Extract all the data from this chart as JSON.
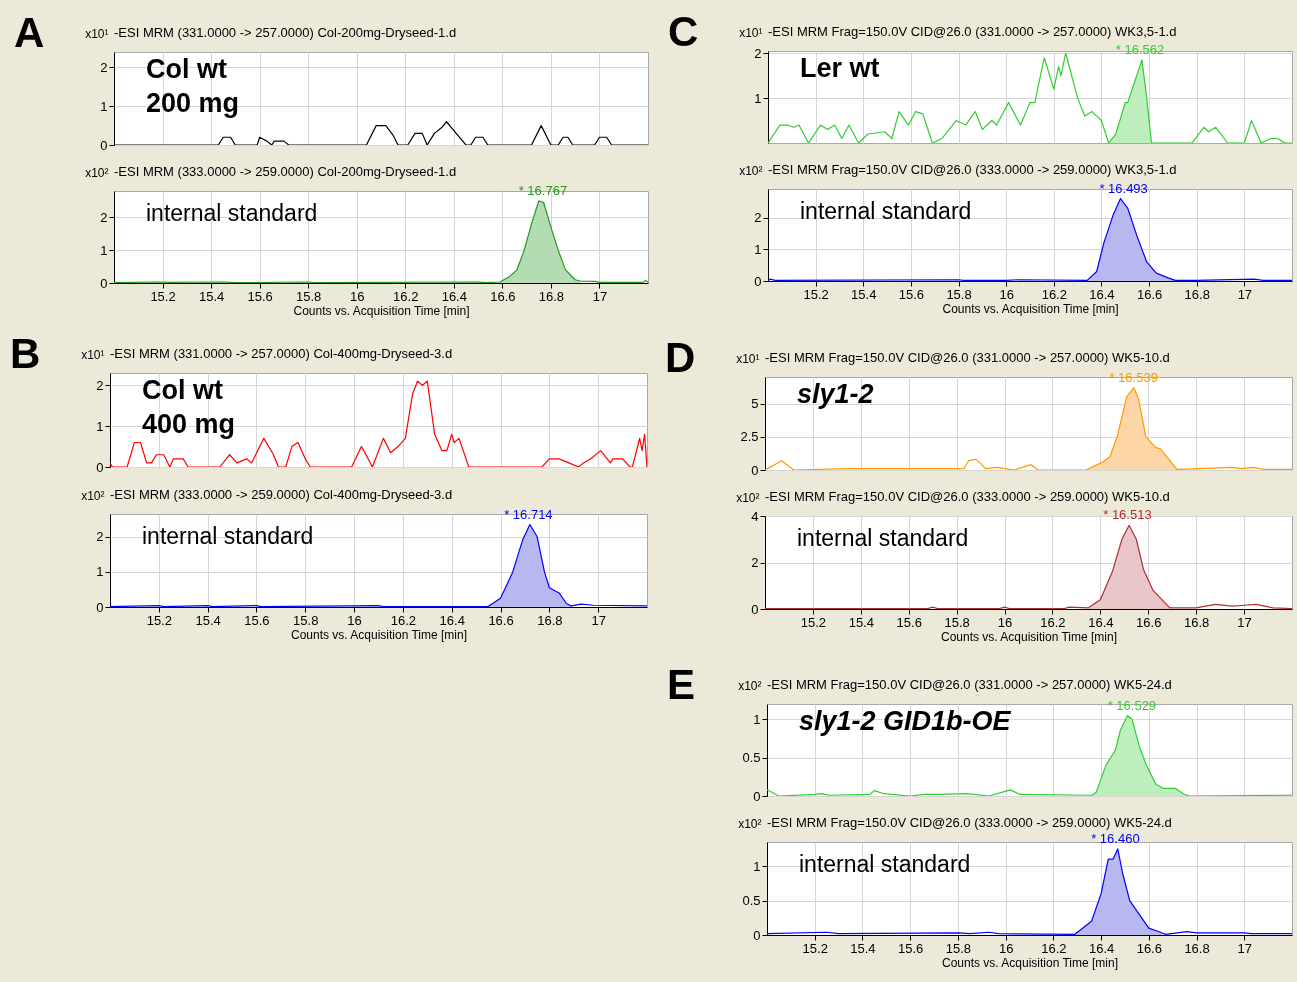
{
  "chart_data": [
    {
      "type": "line",
      "title": "-ESI MRM (331.0000 -> 257.0000) Col-200mg-Dryseed-1.d",
      "ylabel": "x10¹",
      "xlim": [
        15.0,
        17.2
      ],
      "xticks": [
        15.2,
        15.4,
        15.6,
        15.8,
        16,
        16.2,
        16.4,
        16.6,
        16.8,
        17
      ],
      "ylim": [
        0,
        2.4
      ],
      "yticks": [
        0,
        1,
        2
      ],
      "grid": true,
      "tick_labels": "y",
      "series": [
        {
          "color": "#000000",
          "x": [
            15.0,
            15.43,
            15.45,
            15.48,
            15.5,
            15.59,
            15.6,
            15.63,
            15.65,
            15.66,
            15.7,
            15.72,
            16.04,
            16.08,
            16.12,
            16.15,
            16.17,
            16.21,
            16.24,
            16.27,
            16.29,
            16.32,
            16.35,
            16.37,
            16.39,
            16.45,
            16.47,
            16.49,
            16.52,
            16.54,
            16.72,
            16.76,
            16.8,
            16.83,
            16.85,
            16.87,
            16.89,
            16.98,
            17.0,
            17.03,
            17.05,
            17.2
          ],
          "values": [
            0,
            0,
            0.2,
            0.2,
            0,
            0,
            0.2,
            0.1,
            0,
            0.1,
            0.1,
            0,
            0,
            0.5,
            0.5,
            0.25,
            0,
            0,
            0.3,
            0.3,
            0,
            0.3,
            0.45,
            0.6,
            0.45,
            0,
            0,
            0.2,
            0.2,
            0,
            0,
            0.5,
            0,
            0,
            0.2,
            0.2,
            0,
            0,
            0.2,
            0.2,
            0,
            0
          ]
        }
      ],
      "annotations": [
        "A",
        "Col wt\n200 mg"
      ]
    },
    {
      "type": "line",
      "title": "-ESI MRM (333.0000 -> 259.0000) Col-200mg-Dryseed-1.d",
      "ylabel": "x10²",
      "xlabel": "Counts vs. Acquisition Time [min]",
      "xlim": [
        15.0,
        17.2
      ],
      "xticks": [
        15.2,
        15.4,
        15.6,
        15.8,
        16,
        16.2,
        16.4,
        16.6,
        16.8,
        17
      ],
      "ylim": [
        0,
        2.8
      ],
      "yticks": [
        0,
        1,
        2
      ],
      "grid": true,
      "series": [
        {
          "type": "area",
          "color": "#b3dcb3",
          "x": [
            16.59,
            16.63,
            16.66,
            16.69,
            16.72,
            16.75,
            16.77,
            16.8,
            16.83,
            16.86,
            16.9,
            16.92
          ],
          "values": [
            0.03,
            0.2,
            0.4,
            1.0,
            1.8,
            2.5,
            2.45,
            1.7,
            1.0,
            0.4,
            0.1,
            0.06
          ]
        },
        {
          "color": "#1f9a1f",
          "x": [
            15.0,
            15.18,
            15.22,
            15.45,
            15.5,
            15.8,
            15.82,
            16.5,
            16.53,
            16.59,
            16.63,
            16.66,
            16.69,
            16.72,
            16.75,
            16.77,
            16.8,
            16.83,
            16.86,
            16.9,
            16.92,
            16.98,
            17.0,
            17.18,
            17.19,
            17.2
          ],
          "values": [
            0.01,
            0.03,
            0.02,
            0.03,
            0.01,
            0.03,
            0.01,
            0.03,
            0.01,
            0.03,
            0.2,
            0.4,
            1.0,
            1.8,
            2.5,
            2.45,
            1.7,
            1.0,
            0.4,
            0.1,
            0.06,
            0.05,
            0.02,
            0.02,
            0.08,
            0.02
          ]
        }
      ],
      "annotations": [
        "internal standard",
        {
          "text": "* 16.767",
          "x": 16.767,
          "y": 2.5
        }
      ]
    },
    {
      "type": "line",
      "title": "-ESI MRM (331.0000 -> 257.0000) Col-400mg-Dryseed-3.d",
      "ylabel": "x10¹",
      "xlim": [
        15.0,
        17.2
      ],
      "xticks": [
        15.2,
        15.4,
        15.6,
        15.8,
        16,
        16.2,
        16.4,
        16.6,
        16.8,
        17
      ],
      "ylim": [
        0,
        2.3
      ],
      "yticks": [
        0,
        1,
        2
      ],
      "grid": true,
      "tick_labels": "y",
      "series": [
        {
          "color": "#ff0000",
          "x": [
            15.0,
            15.01,
            15.07,
            15.1,
            15.125,
            15.15,
            15.17,
            15.19,
            15.22,
            15.245,
            15.26,
            15.3,
            15.32,
            15.45,
            15.49,
            15.52,
            15.56,
            15.58,
            15.63,
            15.67,
            15.69,
            15.72,
            15.745,
            15.77,
            15.8,
            15.82,
            15.99,
            16.03,
            16.04,
            16.075,
            16.12,
            16.15,
            16.18,
            16.21,
            16.24,
            16.26,
            16.28,
            16.3,
            16.33,
            16.36,
            16.38,
            16.4,
            16.41,
            16.43,
            16.47,
            16.77,
            16.8,
            16.84,
            16.88,
            16.92,
            16.94,
            16.97,
            17.01,
            17.05,
            17.06,
            17.1,
            17.13,
            17.14,
            17.17,
            17.18,
            17.19,
            17.2
          ],
          "values": [
            0.1,
            0,
            0,
            0.6,
            0.6,
            0.1,
            0.1,
            0.3,
            0.3,
            0,
            0.2,
            0.2,
            0,
            0,
            0.3,
            0.1,
            0.2,
            0.1,
            0.7,
            0.3,
            0,
            0,
            0.5,
            0.6,
            0.2,
            0,
            0,
            0.5,
            0.4,
            0,
            0.7,
            0.35,
            0.5,
            0.7,
            1.8,
            2.1,
            2.0,
            2.1,
            0.8,
            0.4,
            0.4,
            0.8,
            0.6,
            0.7,
            0,
            0,
            0.2,
            0.2,
            0.1,
            0,
            0.1,
            0.2,
            0.4,
            0.1,
            0.2,
            0.2,
            0,
            0,
            0.7,
            0.4,
            0.8,
            0
          ]
        }
      ],
      "annotations": [
        "B",
        "Col wt\n400 mg"
      ]
    },
    {
      "type": "line",
      "title": "-ESI MRM (333.0000 -> 259.0000) Col-400mg-Dryseed-3.d",
      "ylabel": "x10²",
      "xlabel": "Counts vs. Acquisition Time [min]",
      "xlim": [
        15.0,
        17.2
      ],
      "xticks": [
        15.2,
        15.4,
        15.6,
        15.8,
        16,
        16.2,
        16.4,
        16.6,
        16.8,
        17
      ],
      "ylim": [
        0,
        2.65
      ],
      "yticks": [
        0,
        1,
        2
      ],
      "grid": true,
      "series": [
        {
          "type": "area",
          "color": "#b8b8f0",
          "x": [
            16.55,
            16.6,
            16.65,
            16.69,
            16.72,
            16.75,
            16.78,
            16.8,
            16.84,
            16.87,
            16.89
          ],
          "values": [
            0.02,
            0.25,
            1.0,
            1.9,
            2.35,
            2.0,
            1.0,
            0.55,
            0.4,
            0.1,
            0.03
          ]
        },
        {
          "color": "#0000ff",
          "x": [
            15.0,
            15.2,
            15.22,
            15.4,
            15.42,
            15.6,
            15.62,
            16.1,
            16.12,
            16.55,
            16.6,
            16.65,
            16.69,
            16.72,
            16.75,
            16.78,
            16.8,
            16.84,
            16.87,
            16.89,
            16.93,
            16.98,
            17.2
          ],
          "values": [
            0.01,
            0.04,
            0.01,
            0.04,
            0.01,
            0.04,
            0.01,
            0.04,
            0.01,
            0.02,
            0.25,
            1.0,
            1.9,
            2.35,
            2.0,
            1.0,
            0.55,
            0.4,
            0.1,
            0.03,
            0.08,
            0.05,
            0.03
          ]
        }
      ],
      "annotations": [
        "internal standard",
        {
          "text": "* 16.714",
          "x": 16.714,
          "y": 2.35
        }
      ]
    },
    {
      "type": "line",
      "title": "-ESI MRM Frag=150.0V CID@26.0 (331.0000 -> 257.0000) WK3,5-1.d",
      "ylabel": "x10¹",
      "xlim": [
        15.0,
        17.2
      ],
      "xticks": [
        15.2,
        15.4,
        15.6,
        15.8,
        16,
        16.2,
        16.4,
        16.6,
        16.8,
        17
      ],
      "ylim": [
        0,
        2.05
      ],
      "yticks": [
        1,
        2
      ],
      "grid": true,
      "tick_labels": "y",
      "series": [
        {
          "type": "area",
          "color": "#bdeebd",
          "x": [
            16.43,
            16.46,
            16.5,
            16.51,
            16.57,
            16.59,
            16.61
          ],
          "values": [
            0,
            0.2,
            0.9,
            0.9,
            1.85,
            1.0,
            0
          ]
        },
        {
          "color": "#33cc33",
          "x": [
            15.0,
            15.05,
            15.08,
            15.11,
            15.13,
            15.17,
            15.22,
            15.25,
            15.28,
            15.31,
            15.34,
            15.38,
            15.42,
            15.49,
            15.52,
            15.55,
            15.59,
            15.62,
            15.65,
            15.69,
            15.73,
            15.79,
            15.83,
            15.87,
            15.9,
            15.94,
            15.96,
            16.01,
            16.06,
            16.1,
            16.12,
            16.16,
            16.2,
            16.22,
            16.23,
            16.25,
            16.3,
            16.33,
            16.36,
            16.4,
            16.43,
            16.46,
            16.5,
            16.51,
            16.57,
            16.59,
            16.61,
            16.78,
            16.83,
            16.85,
            16.88,
            16.93,
            17.0,
            17.03,
            17.07,
            17.11,
            17.14,
            17.17,
            17.2
          ],
          "values": [
            0,
            0.4,
            0.4,
            0.35,
            0.4,
            0,
            0.4,
            0.3,
            0.4,
            0.1,
            0.4,
            0,
            0.2,
            0.25,
            0.1,
            0.7,
            0.4,
            0.7,
            0.65,
            0,
            0.1,
            0.5,
            0.4,
            0.7,
            0.3,
            0.5,
            0.4,
            0.9,
            0.4,
            0.9,
            0.9,
            1.9,
            1.2,
            1.7,
            1.5,
            2.0,
            1.0,
            0.6,
            0.7,
            0.5,
            0,
            0.2,
            0.9,
            0.9,
            1.85,
            1.0,
            0,
            0,
            0.35,
            0.25,
            0.35,
            0,
            0,
            0.5,
            0,
            0.1,
            0.1,
            0,
            0
          ]
        }
      ],
      "annotations": [
        "C",
        "Ler wt",
        {
          "text": "* 16.562",
          "x": 16.562,
          "y": 1.85
        }
      ]
    },
    {
      "type": "line",
      "title": "-ESI MRM Frag=150.0V CID@26.0 (333.0000 -> 259.0000) WK3,5-1.d",
      "ylabel": "x10²",
      "xlabel": "Counts vs. Acquisition Time [min]",
      "xlim": [
        15.0,
        17.2
      ],
      "xticks": [
        15.2,
        15.4,
        15.6,
        15.8,
        16,
        16.2,
        16.4,
        16.6,
        16.8,
        17
      ],
      "ylim": [
        0,
        2.9
      ],
      "yticks": [
        0,
        1,
        2
      ],
      "grid": true,
      "series": [
        {
          "type": "area",
          "color": "#b8b8f0",
          "x": [
            16.34,
            16.38,
            16.41,
            16.45,
            16.48,
            16.51,
            16.55,
            16.59,
            16.63,
            16.68,
            16.71
          ],
          "values": [
            0.02,
            0.3,
            1.2,
            2.1,
            2.6,
            2.3,
            1.4,
            0.6,
            0.25,
            0.1,
            0.02
          ]
        },
        {
          "color": "#0000ff",
          "x": [
            15.0,
            15.01,
            15.03,
            15.8,
            15.82,
            16.0,
            16.05,
            16.34,
            16.38,
            16.41,
            16.45,
            16.48,
            16.51,
            16.55,
            16.59,
            16.63,
            16.68,
            16.71,
            16.8,
            17.04,
            17.08,
            17.2
          ],
          "values": [
            0.02,
            0.06,
            0.02,
            0.04,
            0.02,
            0.02,
            0.04,
            0.02,
            0.3,
            1.2,
            2.1,
            2.6,
            2.3,
            1.4,
            0.6,
            0.25,
            0.1,
            0.02,
            0.02,
            0.06,
            0.02,
            0.02
          ]
        }
      ],
      "annotations": [
        "internal standard",
        {
          "text": "* 16.493",
          "x": 16.493,
          "y": 2.6
        }
      ]
    },
    {
      "type": "line",
      "title": "-ESI MRM Frag=150.0V CID@26.0 (331.0000 -> 257.0000) WK5-10.d",
      "ylabel": "x10¹",
      "xlim": [
        15.0,
        17.2
      ],
      "xticks": [
        15.2,
        15.4,
        15.6,
        15.8,
        16,
        16.2,
        16.4,
        16.6,
        16.8,
        17
      ],
      "ylim": [
        0,
        7
      ],
      "yticks": [
        0,
        2.5,
        5
      ],
      "grid": true,
      "tick_labels": "y",
      "series": [
        {
          "type": "area",
          "color": "#fdd6a8",
          "x": [
            16.34,
            16.41,
            16.44,
            16.47,
            16.51,
            16.54,
            16.56,
            16.59,
            16.63,
            16.65,
            16.69,
            16.72
          ],
          "values": [
            0,
            0.6,
            1.0,
            2.5,
            5.5,
            6.2,
            5.3,
            2.5,
            1.7,
            1.6,
            0.7,
            0.05
          ]
        },
        {
          "color": "#ff9900",
          "x": [
            15.0,
            15.07,
            15.12,
            15.34,
            15.46,
            15.66,
            15.83,
            15.85,
            15.88,
            15.9,
            15.92,
            15.97,
            16.04,
            16.11,
            16.14,
            16.34,
            16.41,
            16.44,
            16.47,
            16.51,
            16.54,
            16.56,
            16.59,
            16.63,
            16.65,
            16.69,
            16.72,
            16.81,
            16.95,
            16.99,
            17.04,
            17.08,
            17.2
          ],
          "values": [
            0,
            0.7,
            0,
            0.1,
            0.1,
            0.1,
            0.1,
            0.7,
            0.8,
            0.5,
            0.1,
            0.2,
            0,
            0.4,
            0,
            0,
            0.6,
            1.0,
            2.5,
            5.5,
            6.2,
            5.3,
            2.5,
            1.7,
            1.6,
            0.7,
            0.05,
            0.1,
            0.2,
            0.1,
            0.2,
            0.05,
            0.05
          ]
        }
      ],
      "annotations": [
        "D",
        "sly1-2",
        {
          "text": "* 16.539",
          "x": 16.539,
          "y": 6.2
        }
      ]
    },
    {
      "type": "line",
      "title": "-ESI MRM Frag=150.0V CID@26.0 (333.0000 -> 259.0000) WK5-10.d",
      "ylabel": "x10²",
      "xlabel": "Counts vs. Acquisition Time [min]",
      "xlim": [
        15.0,
        17.2
      ],
      "xticks": [
        15.2,
        15.4,
        15.6,
        15.8,
        16,
        16.2,
        16.4,
        16.6,
        16.8,
        17
      ],
      "ylim": [
        0,
        4
      ],
      "yticks": [
        0,
        2,
        4
      ],
      "grid": true,
      "series": [
        {
          "type": "area",
          "color": "#e8c6ca",
          "x": [
            16.35,
            16.4,
            16.45,
            16.49,
            16.52,
            16.55,
            16.58,
            16.62,
            16.69
          ],
          "values": [
            0.05,
            0.4,
            1.6,
            3.0,
            3.6,
            3.0,
            1.7,
            0.8,
            0.05
          ]
        },
        {
          "color": "#b03030",
          "x": [
            15.0,
            15.68,
            15.7,
            15.72,
            15.98,
            16.0,
            16.02,
            16.25,
            16.27,
            16.35,
            16.4,
            16.45,
            16.49,
            16.52,
            16.55,
            16.58,
            16.62,
            16.69,
            16.8,
            16.88,
            16.95,
            16.99,
            17.05,
            17.12,
            17.2
          ],
          "values": [
            0.02,
            0.02,
            0.08,
            0.02,
            0.02,
            0.08,
            0.02,
            0.02,
            0.08,
            0.05,
            0.4,
            1.6,
            3.0,
            3.6,
            3.0,
            1.7,
            0.8,
            0.05,
            0.05,
            0.2,
            0.12,
            0.15,
            0.2,
            0.05,
            0.02
          ]
        }
      ],
      "annotations": [
        "internal standard",
        {
          "text": "* 16.513",
          "x": 16.513,
          "y": 3.6
        }
      ]
    },
    {
      "type": "line",
      "title": "-ESI MRM Frag=150.0V CID@26.0 (331.0000 -> 257.0000) WK5-24.d",
      "ylabel": "x10²",
      "xlim": [
        15.0,
        17.2
      ],
      "xticks": [
        15.2,
        15.4,
        15.6,
        15.8,
        16,
        16.2,
        16.4,
        16.6,
        16.8,
        17
      ],
      "ylim": [
        0,
        1.2
      ],
      "yticks": [
        0,
        0.5,
        1
      ],
      "grid": true,
      "tick_labels": "y",
      "series": [
        {
          "type": "area",
          "color": "#bdeebd",
          "x": [
            16.36,
            16.38,
            16.42,
            16.46,
            16.48,
            16.51,
            16.53,
            16.56,
            16.59,
            16.63,
            16.66,
            16.71,
            16.75,
            16.77
          ],
          "values": [
            0.01,
            0.05,
            0.4,
            0.6,
            0.85,
            1.05,
            1.0,
            0.65,
            0.4,
            0.15,
            0.1,
            0.1,
            0.02,
            0
          ]
        },
        {
          "color": "#33cc33",
          "x": [
            15.0,
            15.05,
            15.2,
            15.23,
            15.26,
            15.43,
            15.45,
            15.49,
            15.6,
            15.66,
            15.72,
            15.84,
            15.93,
            16.02,
            16.06,
            16.36,
            16.38,
            16.42,
            16.46,
            16.48,
            16.51,
            16.53,
            16.56,
            16.59,
            16.63,
            16.66,
            16.71,
            16.75,
            16.77,
            17.2
          ],
          "values": [
            0.08,
            0,
            0.02,
            0.03,
            0.01,
            0.02,
            0.07,
            0.03,
            0,
            0.02,
            0.02,
            0.03,
            0,
            0.08,
            0.02,
            0.01,
            0.05,
            0.4,
            0.6,
            0.85,
            1.05,
            1.0,
            0.65,
            0.4,
            0.15,
            0.1,
            0.1,
            0.02,
            0,
            0.01
          ]
        }
      ],
      "annotations": [
        "E",
        "sly1-2 GID1b-OE",
        {
          "text": "* 16.529",
          "x": 16.529,
          "y": 1.05
        }
      ]
    },
    {
      "type": "line",
      "title": "-ESI MRM Frag=150.0V CID@26.0 (333.0000 -> 259.0000) WK5-24.d",
      "ylabel": "x10²",
      "xlabel": "Counts vs. Acquisition Time [min]",
      "xlim": [
        15.0,
        17.2
      ],
      "xticks": [
        15.2,
        15.4,
        15.6,
        15.8,
        16,
        16.2,
        16.4,
        16.6,
        16.8,
        17
      ],
      "ylim": [
        0,
        1.35
      ],
      "yticks": [
        0,
        0.5,
        1
      ],
      "grid": true,
      "series": [
        {
          "type": "area",
          "color": "#b8b8f0",
          "x": [
            16.29,
            16.36,
            16.4,
            16.43,
            16.45,
            16.47,
            16.49,
            16.52,
            16.56,
            16.6,
            16.64,
            16.67
          ],
          "values": [
            0.01,
            0.2,
            0.6,
            1.1,
            1.1,
            1.25,
            0.9,
            0.5,
            0.3,
            0.1,
            0.05,
            0.01
          ]
        },
        {
          "color": "#0000ff",
          "x": [
            15.0,
            15.25,
            15.3,
            15.8,
            15.85,
            15.93,
            15.97,
            16.29,
            16.36,
            16.4,
            16.43,
            16.45,
            16.47,
            16.49,
            16.52,
            16.56,
            16.6,
            16.64,
            16.67,
            16.76,
            16.8,
            17.0,
            17.03,
            17.2
          ],
          "values": [
            0.02,
            0.04,
            0.02,
            0.03,
            0.02,
            0.04,
            0.02,
            0.01,
            0.2,
            0.6,
            1.1,
            1.1,
            1.25,
            0.9,
            0.5,
            0.3,
            0.1,
            0.05,
            0.01,
            0.05,
            0.03,
            0.03,
            0.02,
            0.02
          ]
        }
      ],
      "annotations": [
        "internal standard",
        {
          "text": "* 16.460",
          "x": 16.46,
          "y": 1.25
        }
      ]
    }
  ]
}
